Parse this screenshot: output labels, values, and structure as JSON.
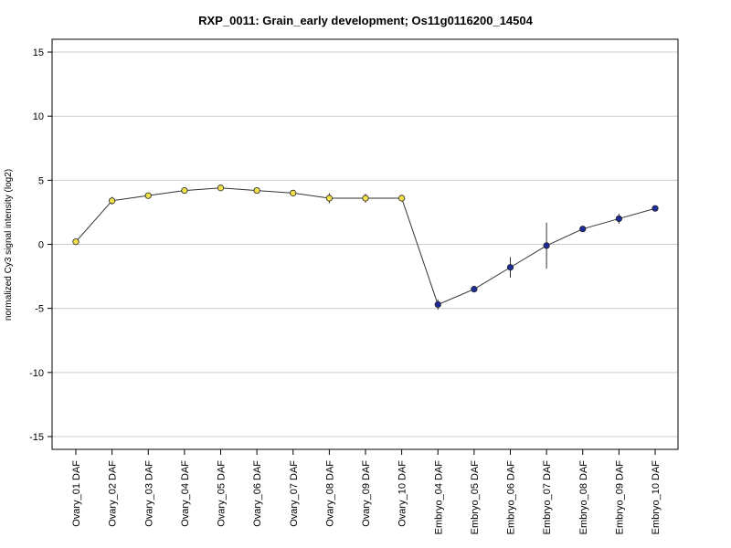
{
  "chart_data": {
    "type": "line",
    "title": "RXP_0011: Grain_early development; Os11g0116200_14504",
    "xlabel": "",
    "ylabel": "normalized Cy3 signal intensity (log2)",
    "ylim": [
      -16,
      16
    ],
    "yticks": [
      15,
      10,
      5,
      0,
      -5,
      -10,
      -15
    ],
    "ytick_labels": [
      "15",
      "10",
      "5",
      "0",
      "-5",
      "-10",
      "-15"
    ],
    "grid": "horizontal",
    "categories": [
      "Ovary_01 DAF",
      "Ovary_02 DAF",
      "Ovary_03 DAF",
      "Ovary_04 DAF",
      "Ovary_05 DAF",
      "Ovary_06 DAF",
      "Ovary_07 DAF",
      "Ovary_08 DAF",
      "Ovary_09 DAF",
      "Ovary_10 DAF",
      "Embryo_04 DAF",
      "Embryo_05 DAF",
      "Embryo_06 DAF",
      "Embryo_07 DAF",
      "Embryo_08 DAF",
      "Embryo_09 DAF",
      "Embryo_10 DAF"
    ],
    "series": [
      {
        "values": [
          0.2,
          3.4,
          3.8,
          4.2,
          4.4,
          4.2,
          4.0,
          3.6,
          3.6,
          3.6,
          -4.7,
          -3.5,
          -1.8,
          -0.1,
          1.2,
          2.0,
          2.8
        ],
        "error": [
          0.15,
          0.3,
          0.2,
          0.25,
          0.2,
          0.2,
          0.2,
          0.4,
          0.35,
          0.25,
          0.4,
          0.15,
          0.8,
          1.8,
          0.15,
          0.4,
          0.15
        ],
        "marker_colors": [
          "#f2e14a",
          "#f2e14a",
          "#f2e14a",
          "#f2e14a",
          "#f2e14a",
          "#f2e14a",
          "#f2e14a",
          "#f2e14a",
          "#f2e14a",
          "#f2e14a",
          "#1d2e9b",
          "#1d2e9b",
          "#1d2e9b",
          "#1d2e9b",
          "#1d2e9b",
          "#1d2e9b",
          "#1d2e9b"
        ],
        "line_color": "#333333"
      }
    ]
  }
}
